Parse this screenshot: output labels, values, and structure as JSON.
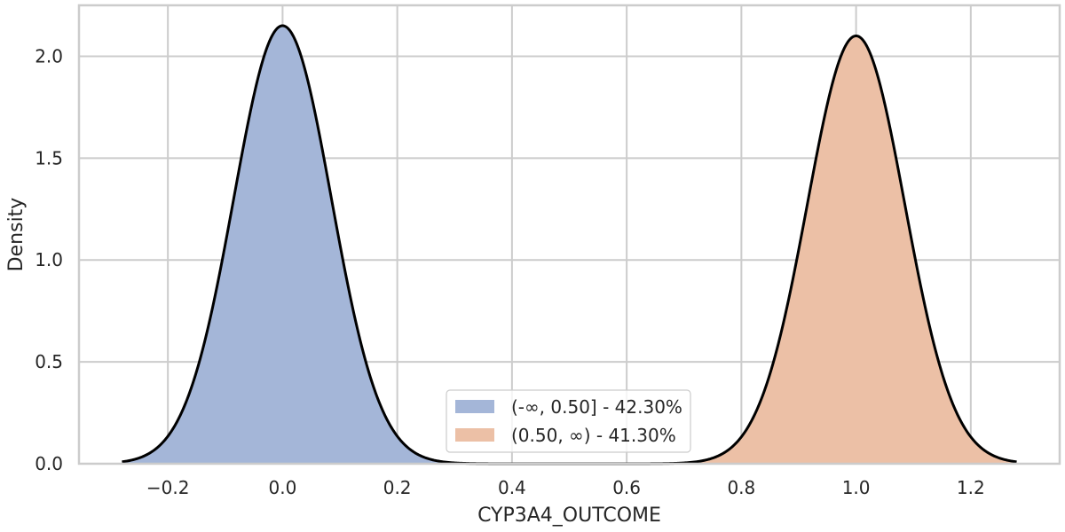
{
  "chart_data": {
    "type": "area",
    "title": "",
    "xlabel": "CYP3A4_OUTCOME",
    "ylabel": "Density",
    "xlim": [
      -0.355,
      1.355
    ],
    "ylim": [
      0,
      2.25
    ],
    "x_ticks": [
      -0.2,
      0.0,
      0.2,
      0.4,
      0.6,
      0.8,
      1.0,
      1.2
    ],
    "x_tick_labels": [
      "−0.2",
      "0.0",
      "0.2",
      "0.4",
      "0.6",
      "0.8",
      "1.0",
      "1.2"
    ],
    "y_ticks": [
      0.0,
      0.5,
      1.0,
      1.5,
      2.0
    ],
    "y_tick_labels": [
      "0.0",
      "0.5",
      "1.0",
      "1.5",
      "2.0"
    ],
    "grid": true,
    "legend_position": "bottom-center",
    "x_range": [
      -0.28,
      1.28
    ],
    "series": [
      {
        "name": "(-∞, 0.50] - 42.30%",
        "color": "#a4b6d8",
        "fill_range": [
          -0.28,
          0.5
        ],
        "components": [
          {
            "mean": 0.0,
            "sd": 0.085,
            "peak": 2.15
          }
        ]
      },
      {
        "name": "(0.50, ∞) - 41.30%",
        "color": "#ecc0a6",
        "fill_range": [
          0.5,
          1.28
        ],
        "components": [
          {
            "mean": 1.0,
            "sd": 0.085,
            "peak": 2.1
          }
        ]
      }
    ],
    "density_line_color": "#000000"
  }
}
